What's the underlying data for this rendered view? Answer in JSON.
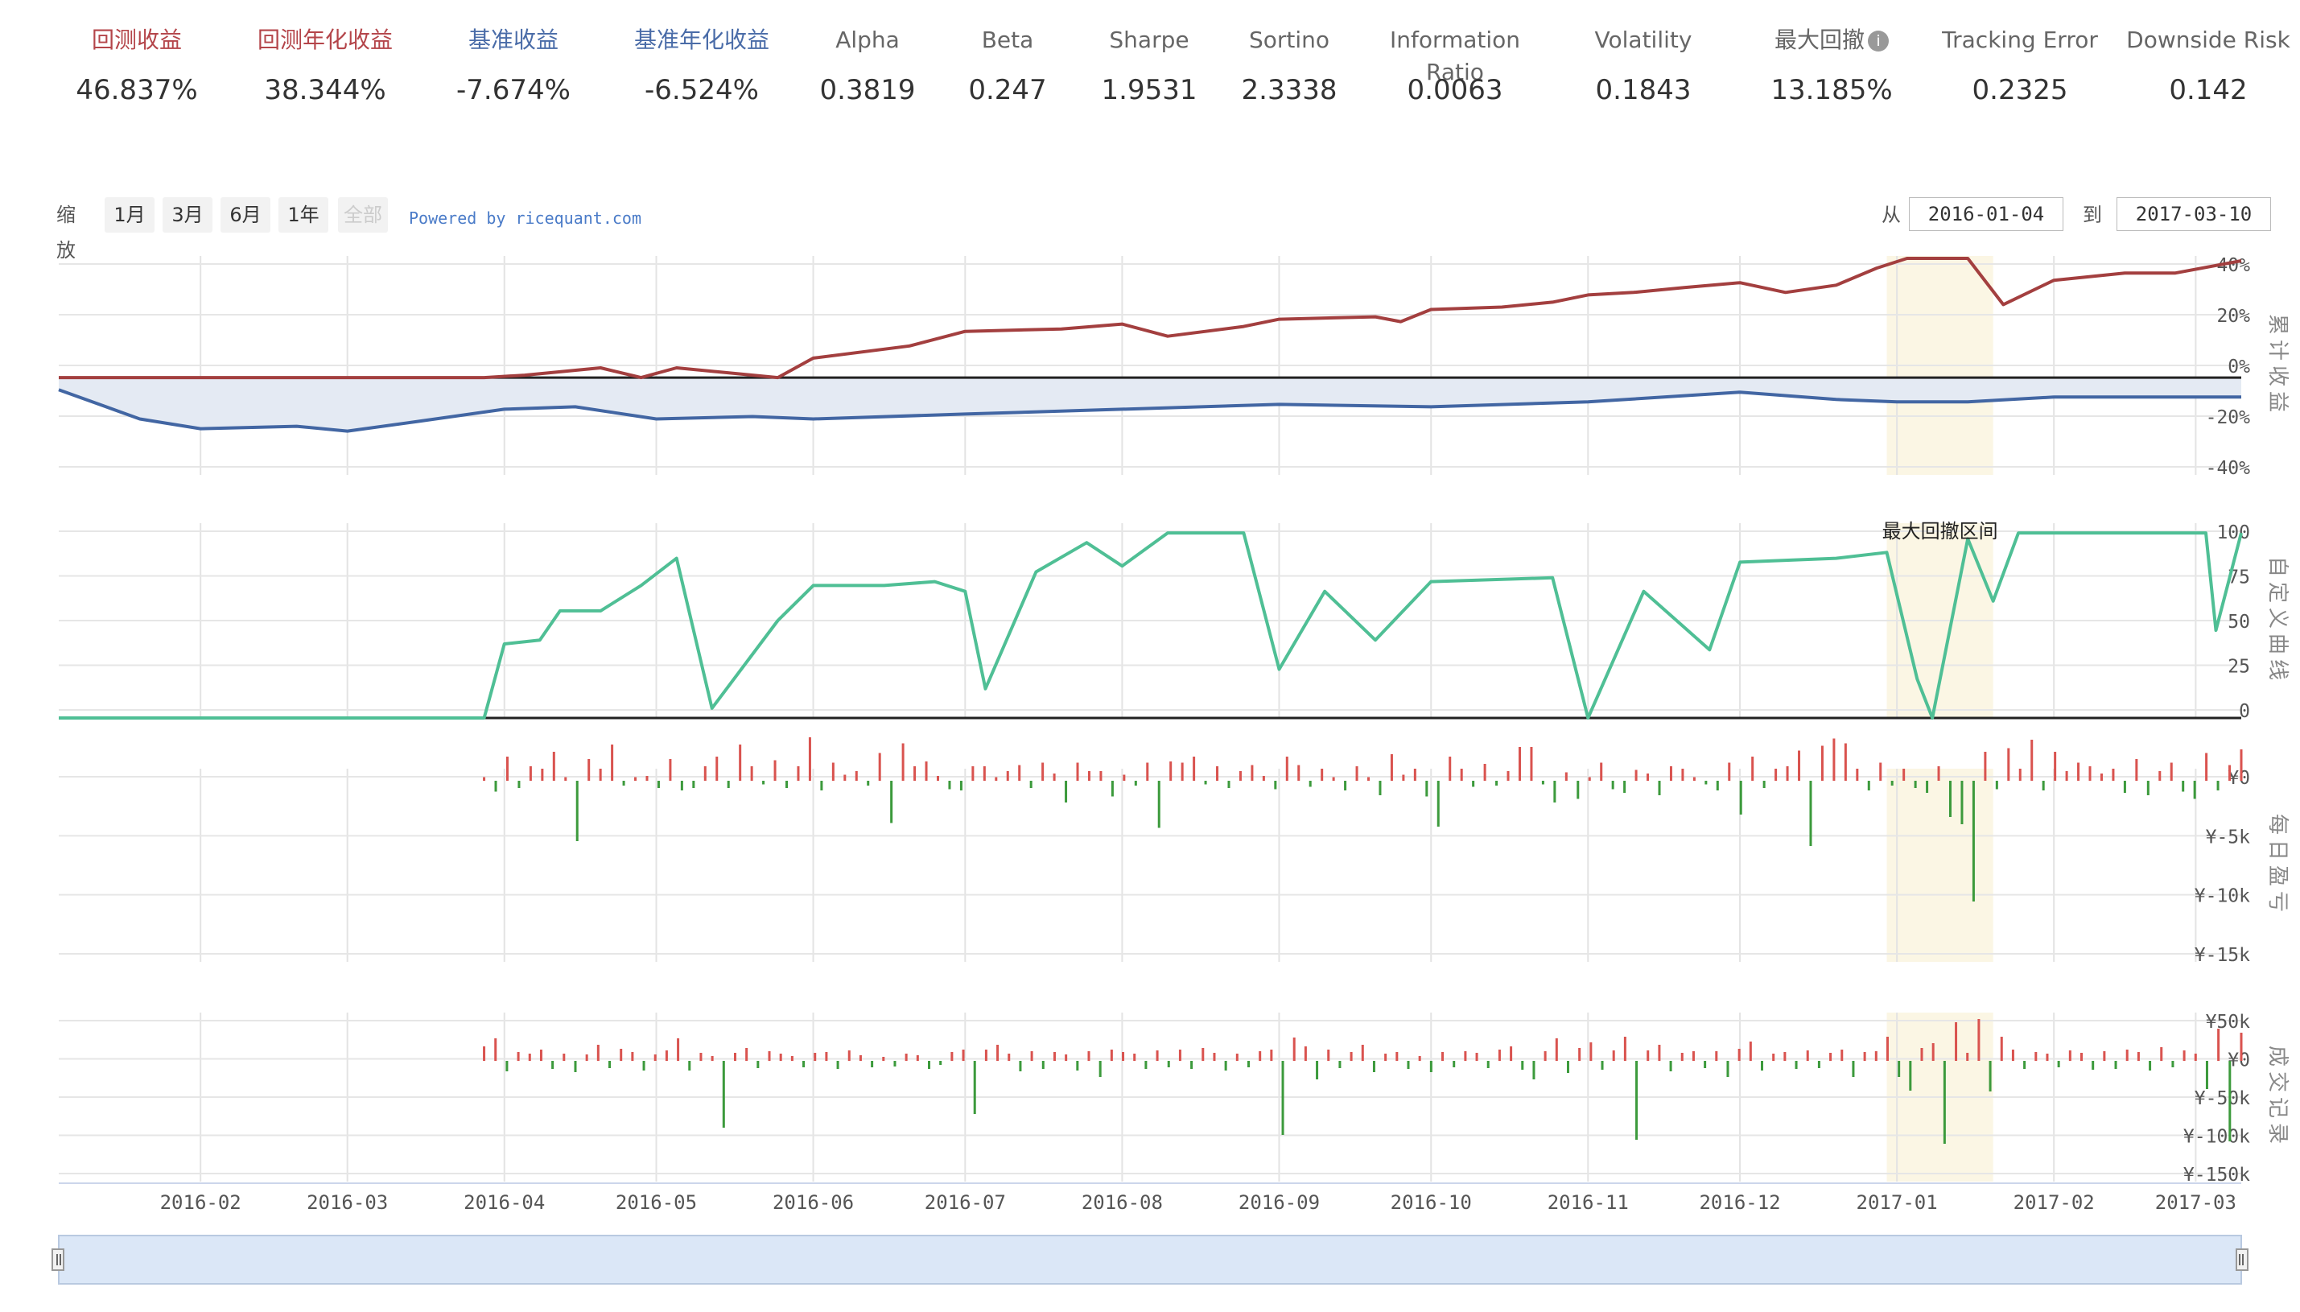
{
  "metrics": [
    {
      "label": "回测收益",
      "value": "46.837%",
      "color": "#b4454a"
    },
    {
      "label": "回测年化收益",
      "value": "38.344%",
      "color": "#b4454a"
    },
    {
      "label": "基准收益",
      "value": "-7.674%",
      "color": "#4a6ca8"
    },
    {
      "label": "基准年化收益",
      "value": "-6.524%",
      "color": "#4a6ca8"
    },
    {
      "label": "Alpha",
      "value": "0.3819",
      "color": "#666666"
    },
    {
      "label": "Beta",
      "value": "0.247",
      "color": "#666666"
    },
    {
      "label": "Sharpe",
      "value": "1.9531",
      "color": "#666666"
    },
    {
      "label": "Sortino",
      "value": "2.3338",
      "color": "#666666"
    },
    {
      "label": "Information Ratio",
      "value": "0.0063",
      "color": "#666666"
    },
    {
      "label": "Volatility",
      "value": "0.1843",
      "color": "#666666"
    },
    {
      "label": "最大回撤",
      "value": "13.185%",
      "color": "#666666",
      "info_icon": "info-icon"
    },
    {
      "label": "Tracking Error",
      "value": "0.2325",
      "color": "#666666"
    },
    {
      "label": "Downside Risk",
      "value": "0.142",
      "color": "#666666"
    }
  ],
  "zoom": {
    "label": "缩放",
    "buttons": [
      "1月",
      "3月",
      "6月",
      "1年",
      "全部"
    ],
    "disabled_index": 4,
    "powered_by": "Powered by ricequant.com"
  },
  "range": {
    "from_label": "从",
    "from": "2016-01-04",
    "to_label": "到",
    "to": "2017-03-10"
  },
  "colors": {
    "strategy": "#a33f3f",
    "benchmark": "#4266a3",
    "custom": "#4fbf95",
    "profit": "#d9534f",
    "loss": "#3c9a3c",
    "drawdown": "#fbf6e4",
    "navigator": "#dbe7f7"
  },
  "chart_data": [
    {
      "type": "line",
      "ylabel": "累计收益",
      "y_ticks": [
        "40%",
        "20%",
        "0%",
        "-20%",
        "-40%"
      ],
      "ylim": [
        -40,
        50
      ],
      "x_ticks": [
        "2016-02",
        "2016-03",
        "2016-04",
        "2016-05",
        "2016-06",
        "2016-07",
        "2016-08",
        "2016-09",
        "2016-10",
        "2016-11",
        "2016-12",
        "2017-01",
        "2017-02",
        "2017-03"
      ],
      "series": [
        {
          "points": [
            [
              "2016-01-04",
              0
            ],
            [
              "2016-03-28",
              0
            ],
            [
              "2016-04-05",
              1
            ],
            [
              "2016-04-20",
              4
            ],
            [
              "2016-04-28",
              0
            ],
            [
              "2016-05-05",
              4
            ],
            [
              "2016-05-25",
              0
            ],
            [
              "2016-06-01",
              8
            ],
            [
              "2016-06-20",
              13
            ],
            [
              "2016-07-01",
              19
            ],
            [
              "2016-07-20",
              20
            ],
            [
              "2016-08-01",
              22
            ],
            [
              "2016-08-10",
              17
            ],
            [
              "2016-08-25",
              21
            ],
            [
              "2016-09-01",
              24
            ],
            [
              "2016-09-20",
              25
            ],
            [
              "2016-09-25",
              23
            ],
            [
              "2016-10-01",
              28
            ],
            [
              "2016-10-15",
              29
            ],
            [
              "2016-10-25",
              31
            ],
            [
              "2016-11-01",
              34
            ],
            [
              "2016-11-10",
              35
            ],
            [
              "2016-11-20",
              37
            ],
            [
              "2016-12-01",
              39
            ],
            [
              "2016-12-10",
              35
            ],
            [
              "2016-12-20",
              38
            ],
            [
              "2016-12-28",
              45
            ],
            [
              "2017-01-03",
              49
            ],
            [
              "2017-01-15",
              49
            ],
            [
              "2017-01-22",
              30
            ],
            [
              "2017-02-01",
              40
            ],
            [
              "2017-02-15",
              43
            ],
            [
              "2017-02-25",
              43
            ],
            [
              "2017-03-10",
              48
            ]
          ]
        },
        {
          "points": [
            [
              "2016-01-04",
              -5
            ],
            [
              "2016-01-20",
              -17
            ],
            [
              "2016-02-01",
              -21
            ],
            [
              "2016-02-20",
              -20
            ],
            [
              "2016-03-01",
              -22
            ],
            [
              "2016-03-15",
              -18
            ],
            [
              "2016-04-01",
              -13
            ],
            [
              "2016-04-15",
              -12
            ],
            [
              "2016-05-01",
              -17
            ],
            [
              "2016-05-20",
              -16
            ],
            [
              "2016-06-01",
              -17
            ],
            [
              "2016-07-01",
              -15
            ],
            [
              "2016-08-01",
              -13
            ],
            [
              "2016-09-01",
              -11
            ],
            [
              "2016-10-01",
              -12
            ],
            [
              "2016-11-01",
              -10
            ],
            [
              "2016-12-01",
              -6
            ],
            [
              "2016-12-20",
              -9
            ],
            [
              "2017-01-01",
              -10
            ],
            [
              "2017-01-15",
              -10
            ],
            [
              "2017-02-01",
              -8
            ],
            [
              "2017-03-10",
              -8
            ]
          ]
        }
      ]
    },
    {
      "type": "line",
      "ylabel": "自定义曲线",
      "y_ticks": [
        "100",
        "75",
        "50",
        "25",
        "0"
      ],
      "ylim": [
        0,
        100
      ],
      "annotation": "最大回撤区间",
      "series": [
        {
          "points": [
            [
              "2016-01-04",
              0
            ],
            [
              "2016-03-28",
              0
            ],
            [
              "2016-04-01",
              38
            ],
            [
              "2016-04-08",
              40
            ],
            [
              "2016-04-12",
              55
            ],
            [
              "2016-04-20",
              55
            ],
            [
              "2016-04-28",
              68
            ],
            [
              "2016-05-05",
              82
            ],
            [
              "2016-05-12",
              5
            ],
            [
              "2016-05-25",
              50
            ],
            [
              "2016-06-01",
              68
            ],
            [
              "2016-06-15",
              68
            ],
            [
              "2016-06-25",
              70
            ],
            [
              "2016-07-01",
              65
            ],
            [
              "2016-07-05",
              15
            ],
            [
              "2016-07-15",
              75
            ],
            [
              "2016-07-25",
              90
            ],
            [
              "2016-08-01",
              78
            ],
            [
              "2016-08-10",
              95
            ],
            [
              "2016-08-25",
              95
            ],
            [
              "2016-09-01",
              25
            ],
            [
              "2016-09-10",
              65
            ],
            [
              "2016-09-20",
              40
            ],
            [
              "2016-10-01",
              70
            ],
            [
              "2016-10-25",
              72
            ],
            [
              "2016-11-01",
              0
            ],
            [
              "2016-11-12",
              65
            ],
            [
              "2016-11-25",
              35
            ],
            [
              "2016-12-01",
              80
            ],
            [
              "2016-12-20",
              82
            ],
            [
              "2016-12-30",
              85
            ],
            [
              "2017-01-05",
              20
            ],
            [
              "2017-01-08",
              0
            ],
            [
              "2017-01-15",
              92
            ],
            [
              "2017-01-20",
              60
            ],
            [
              "2017-01-25",
              95
            ],
            [
              "2017-02-20",
              95
            ],
            [
              "2017-03-03",
              95
            ],
            [
              "2017-03-05",
              45
            ],
            [
              "2017-03-10",
              95
            ]
          ]
        }
      ]
    },
    {
      "type": "bar",
      "ylabel": "每日盈亏",
      "y_ticks": [
        "¥0",
        "¥-5k",
        "¥-10k",
        "¥-15k"
      ],
      "ylim": [
        -15000,
        1000
      ],
      "bar_values": [
        300,
        -900,
        2000,
        -600,
        1200,
        1000,
        2400,
        300,
        -5000,
        1800,
        1000,
        3000,
        -400,
        300,
        400,
        -600,
        1800,
        -800,
        -600,
        1200,
        2000,
        -600,
        3000,
        1200,
        -300,
        1700,
        -600,
        1200,
        3600,
        -800,
        1500,
        500,
        800,
        -400,
        2300,
        -3500,
        3100,
        1200,
        1600,
        400,
        -700,
        -800,
        1200,
        1200,
        300,
        800,
        1300,
        -600,
        1500,
        600,
        -1800,
        1500,
        800,
        800,
        -1300,
        500,
        -400,
        1500,
        -3900,
        1600,
        1500,
        2000,
        -300,
        1200,
        -600,
        800,
        1300,
        400,
        -700,
        2000,
        1300,
        -500,
        1000,
        300,
        -800,
        1200,
        300,
        -1200,
        2200,
        500,
        1000,
        -1300,
        -3800,
        2000,
        1000,
        -500,
        1400,
        -400,
        800,
        2800,
        2800,
        -300,
        -1800,
        700,
        -1500,
        300,
        1500,
        -700,
        -1000,
        900,
        600,
        -1200,
        1200,
        1000,
        300,
        -300,
        -800,
        1500,
        -2800,
        2000,
        -600,
        1000,
        1200,
        2500,
        -5400,
        2900,
        3500,
        3100,
        1000,
        -800,
        1500,
        -400,
        1000,
        -600,
        -1000,
        1200,
        -3000,
        -3600,
        -10000,
        2400,
        -700,
        2700,
        1000,
        3400,
        -800,
        2400,
        800,
        1500,
        1200,
        600,
        1000,
        -1000,
        1800,
        -1200,
        800,
        1500,
        -900,
        -1500,
        2300,
        -800,
        1300,
        2600
      ],
      "bar_x_start": "2016-03-28",
      "bar_x_end": "2017-03-10"
    },
    {
      "type": "bar",
      "ylabel": "成交记录",
      "y_ticks": [
        "¥50k",
        "¥0",
        "¥-50k",
        "¥-100k",
        "¥-150k"
      ],
      "ylim": [
        -150000,
        60000
      ],
      "bar_values": [
        18000,
        28000,
        -13000,
        11000,
        9000,
        14000,
        -10000,
        9000,
        -14000,
        8000,
        20000,
        -9000,
        15000,
        11000,
        -12000,
        8000,
        13000,
        28000,
        -12000,
        10000,
        6000,
        -83000,
        10000,
        16000,
        -9000,
        12000,
        9000,
        6000,
        -8000,
        10000,
        11000,
        -10000,
        13000,
        7000,
        -8000,
        5000,
        -7000,
        9000,
        7000,
        -10000,
        -5000,
        11000,
        14000,
        -66000,
        14000,
        20000,
        9000,
        -13000,
        12000,
        -10000,
        11000,
        8000,
        -12000,
        12000,
        -20000,
        14000,
        11000,
        9000,
        -10000,
        13000,
        -8000,
        14000,
        -10000,
        16000,
        10000,
        -12000,
        9000,
        -8000,
        12000,
        14000,
        -92000,
        29000,
        18000,
        -23000,
        14000,
        -9000,
        11000,
        20000,
        -14000,
        9000,
        11000,
        -10000,
        6000,
        -14000,
        11000,
        -8000,
        12000,
        10000,
        -9000,
        14000,
        18000,
        -11000,
        -23000,
        12000,
        28000,
        -15000,
        16000,
        23000,
        -11000,
        13000,
        30000,
        -98000,
        13000,
        20000,
        -13000,
        10000,
        12000,
        -9000,
        12000,
        -20000,
        15000,
        24000,
        -12000,
        9000,
        11000,
        -10000,
        13000,
        -9000,
        10000,
        14000,
        -20000,
        11000,
        12000,
        30000,
        -20000,
        -37000,
        16000,
        22000,
        -103000,
        48000,
        10000,
        52000,
        -38000,
        30000,
        14000,
        -10000,
        11000,
        9000,
        -8000,
        13000,
        10000,
        -11000,
        12000,
        -10000,
        14000,
        11000,
        -12000,
        17000,
        -8000,
        13000,
        9000,
        -35000,
        40000,
        -100000,
        35000
      ],
      "bar_x_start": "2016-03-28",
      "bar_x_end": "2017-03-10"
    }
  ]
}
